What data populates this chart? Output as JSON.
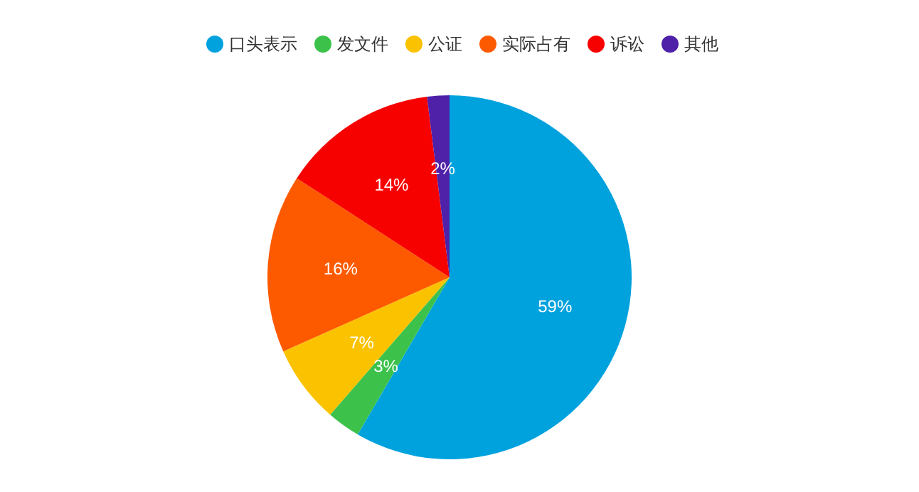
{
  "chart_data": {
    "type": "pie",
    "categories": [
      "口头表示",
      "发文件",
      "公证",
      "实际占有",
      "诉讼",
      "其他"
    ],
    "values": [
      59,
      3,
      7,
      16,
      14,
      2
    ],
    "colors": [
      "#00a2de",
      "#3cc24b",
      "#fbc200",
      "#fd5a00",
      "#f70000",
      "#4f20a8"
    ],
    "value_labels": [
      "59%",
      "3%",
      "7%",
      "16%",
      "14%",
      "2%"
    ],
    "legend": "top left"
  }
}
